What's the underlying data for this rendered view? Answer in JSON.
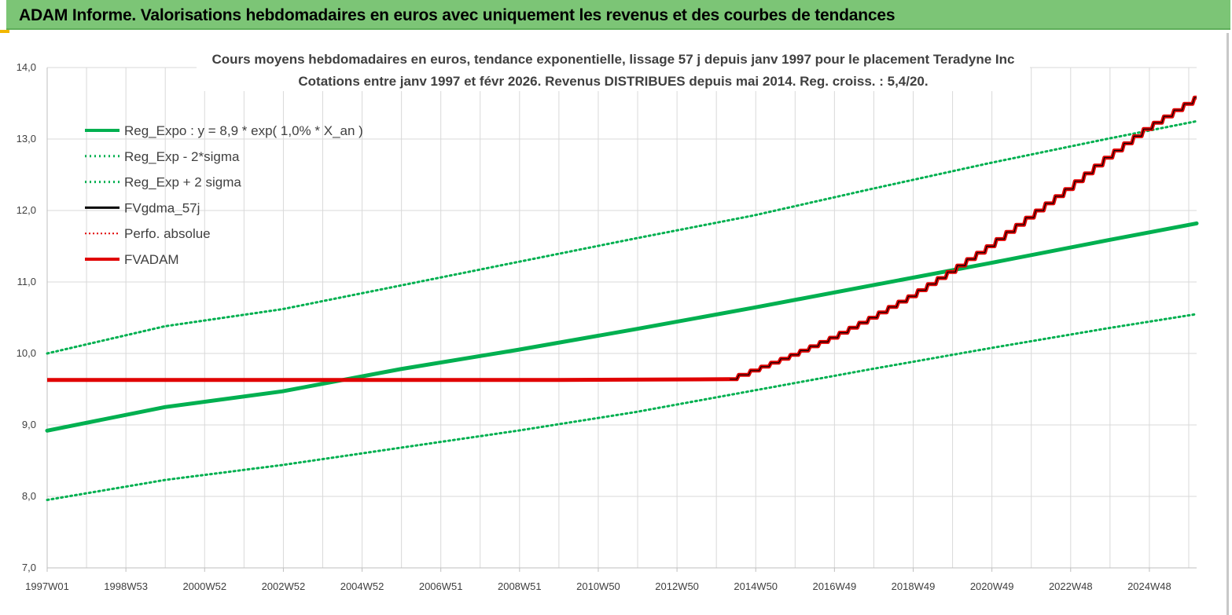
{
  "header": {
    "title": "ADAM Informe. Valorisations hebdomadaires en euros avec uniquement les revenus et des courbes de tendances"
  },
  "colors": {
    "banner": "#7cc576",
    "green": "#00b050",
    "red": "#e00000",
    "black": "#000000",
    "grid": "#d9d9d9"
  },
  "chart_data": {
    "type": "line",
    "title": "Cours moyens hebdomadaires en euros, tendance exponentielle, lissage 57 j depuis janv 1997 pour le placement Teradyne Inc",
    "subtitle": "Cotations entre janv 1997 et févr 2026. Revenus DISTRIBUES depuis mai 2014. Reg. croiss. : 5,4/20.",
    "xlabel": "",
    "ylabel": "",
    "ylim": [
      7.0,
      14.0
    ],
    "xlim": [
      1997.0,
      2026.3
    ],
    "grid": true,
    "legend_position": "top-left",
    "y_ticks": [
      "7,0",
      "8,0",
      "9,0",
      "10,0",
      "11,0",
      "12,0",
      "13,0",
      "14,0"
    ],
    "x_ticks": [
      "1997W01",
      "1998W53",
      "2000W52",
      "2002W52",
      "2004W52",
      "2006W51",
      "2008W51",
      "2010W50",
      "2012W50",
      "2014W50",
      "2016W49",
      "2018W49",
      "2020W49",
      "2022W48",
      "2024W48"
    ],
    "series": [
      {
        "name": "Reg_Expo : y = 8,9 * exp( 1,0% *  X_an )",
        "style": "solid-thick",
        "color": "#00b050",
        "x": [
          1997.0,
          2000.0,
          2003.0,
          2006.0,
          2009.0,
          2012.0,
          2015.0,
          2018.0,
          2021.0,
          2024.0,
          2026.3
        ],
        "y": [
          8.92,
          9.25,
          9.47,
          9.78,
          10.05,
          10.34,
          10.64,
          10.95,
          11.26,
          11.58,
          11.82
        ]
      },
      {
        "name": "Reg_Exp - 2*sigma",
        "style": "dotted",
        "color": "#00b050",
        "x": [
          1997.0,
          2000.0,
          2003.0,
          2006.0,
          2009.0,
          2012.0,
          2015.0,
          2018.0,
          2021.0,
          2024.0,
          2026.3
        ],
        "y": [
          7.95,
          8.23,
          8.44,
          8.68,
          8.92,
          9.18,
          9.48,
          9.78,
          10.07,
          10.35,
          10.55
        ]
      },
      {
        "name": "Reg_Exp + 2 sigma",
        "style": "dotted",
        "color": "#00b050",
        "x": [
          1997.0,
          2000.0,
          2003.0,
          2006.0,
          2009.0,
          2012.0,
          2015.0,
          2018.0,
          2021.0,
          2024.0,
          2026.3
        ],
        "y": [
          10.0,
          10.38,
          10.62,
          10.95,
          11.28,
          11.61,
          11.93,
          12.3,
          12.66,
          13.0,
          13.25
        ]
      },
      {
        "name": "FVgdma_57j",
        "style": "solid",
        "color": "#000000",
        "x": [],
        "y": []
      },
      {
        "name": "Perfo. absolue",
        "style": "dotted-thin",
        "color": "#e00000",
        "x": [],
        "y": []
      },
      {
        "name": "FVADAM",
        "style": "solid-thick-stepped",
        "color": "#e00000",
        "x": [
          1997.0,
          2005.0,
          2010.0,
          2014.4,
          2015.0,
          2016.0,
          2017.0,
          2018.0,
          2019.0,
          2020.0,
          2021.0,
          2022.0,
          2023.0,
          2024.0,
          2025.0,
          2026.3
        ],
        "y": [
          9.63,
          9.63,
          9.63,
          9.64,
          9.76,
          9.98,
          10.22,
          10.5,
          10.8,
          11.14,
          11.5,
          11.9,
          12.3,
          12.74,
          13.14,
          13.58
        ]
      }
    ]
  }
}
